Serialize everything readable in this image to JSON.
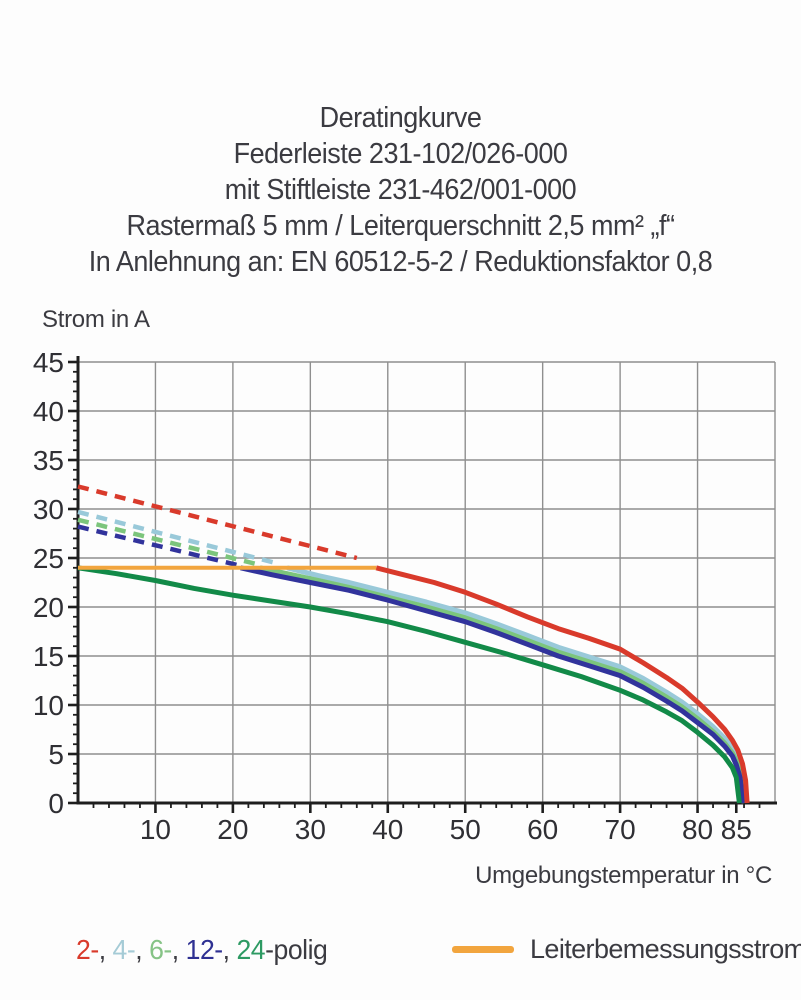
{
  "title": {
    "lines": [
      "Deratingkurve",
      "Federleiste 231-102/026-000",
      "mit Stiftleiste 231-462/001-000",
      "Rastermaß 5 mm / Leiterquerschnitt 2,5 mm² „f“",
      "In Anlehnung an: EN 60512-5-2 / Reduktionsfaktor 0,8"
    ]
  },
  "chart_data": {
    "type": "line",
    "title": "Deratingkurve",
    "xlabel": "Umgebungstemperatur in °C",
    "ylabel": "Strom in A",
    "xlim": [
      0,
      90
    ],
    "ylim": [
      0,
      45
    ],
    "x_major_ticks": [
      10,
      20,
      30,
      40,
      50,
      60,
      70,
      80,
      85
    ],
    "x_grid": [
      10,
      20,
      30,
      40,
      50,
      60,
      70,
      80,
      90
    ],
    "x_minor_step": 2,
    "y_major_ticks": [
      0,
      5,
      10,
      15,
      20,
      25,
      30,
      35,
      40,
      45
    ],
    "y_grid": [
      5,
      10,
      15,
      20,
      25,
      30,
      35,
      40,
      45
    ],
    "y_minor_step": 1,
    "grid_on": true,
    "grid_color": "#8f8f8f",
    "axis_color": "#1e1e1e",
    "tick_label_color": "#2f2f34",
    "series": [
      {
        "id": "2-polig-dashed",
        "name": "2-polig",
        "variant": "dashed",
        "color": "#d93a2b",
        "width": 4.5,
        "points": [
          [
            0,
            32.3
          ],
          [
            36,
            25.0
          ]
        ]
      },
      {
        "id": "4-polig-dashed",
        "name": "4-polig",
        "variant": "dashed",
        "color": "#99c9d9",
        "width": 4.5,
        "points": [
          [
            0,
            29.7
          ],
          [
            26,
            24.4
          ]
        ]
      },
      {
        "id": "6-polig-dashed",
        "name": "6-polig",
        "variant": "dashed",
        "color": "#7cc57c",
        "width": 4.5,
        "points": [
          [
            0,
            28.9
          ],
          [
            23.5,
            24.3
          ]
        ]
      },
      {
        "id": "12-polig-dashed",
        "name": "12-polig",
        "variant": "dashed",
        "color": "#31339c",
        "width": 4.5,
        "points": [
          [
            0,
            28.2
          ],
          [
            20.5,
            24.3
          ]
        ]
      },
      {
        "id": "4-polig",
        "name": "4-polig",
        "variant": "solid",
        "color": "#99c9d9",
        "width": 5,
        "points": [
          [
            27,
            24
          ],
          [
            31,
            23.2
          ],
          [
            35,
            22.5
          ],
          [
            40,
            21.5
          ],
          [
            45,
            20.5
          ],
          [
            50,
            19.4
          ],
          [
            54,
            18.3
          ],
          [
            58,
            17.1
          ],
          [
            62,
            15.9
          ],
          [
            66,
            14.9
          ],
          [
            70,
            13.9
          ],
          [
            73,
            12.7
          ],
          [
            76,
            11.3
          ],
          [
            78,
            10.3
          ],
          [
            80,
            9.1
          ],
          [
            82,
            7.8
          ],
          [
            83.5,
            6.6
          ],
          [
            84.5,
            5.6
          ],
          [
            85.2,
            4.6
          ],
          [
            85.7,
            3.2
          ],
          [
            86.1,
            0
          ]
        ]
      },
      {
        "id": "6-polig",
        "name": "6-polig",
        "variant": "solid",
        "color": "#7cc57c",
        "width": 5,
        "points": [
          [
            23.5,
            24
          ],
          [
            27,
            23.4
          ],
          [
            31,
            22.7
          ],
          [
            35,
            22.0
          ],
          [
            40,
            21.0
          ],
          [
            45,
            20.0
          ],
          [
            50,
            18.9
          ],
          [
            54,
            17.8
          ],
          [
            58,
            16.6
          ],
          [
            62,
            15.4
          ],
          [
            66,
            14.4
          ],
          [
            70,
            13.4
          ],
          [
            73,
            12.2
          ],
          [
            76,
            10.8
          ],
          [
            78,
            9.8
          ],
          [
            80,
            8.6
          ],
          [
            82,
            7.3
          ],
          [
            83.5,
            6.1
          ],
          [
            84.5,
            5.1
          ],
          [
            85.1,
            4.1
          ],
          [
            85.6,
            2.9
          ],
          [
            86.0,
            0
          ]
        ]
      },
      {
        "id": "12-polig",
        "name": "12-polig",
        "variant": "solid",
        "color": "#31339c",
        "width": 5,
        "points": [
          [
            21,
            24
          ],
          [
            25,
            23.3
          ],
          [
            30,
            22.5
          ],
          [
            35,
            21.7
          ],
          [
            40,
            20.7
          ],
          [
            45,
            19.6
          ],
          [
            50,
            18.5
          ],
          [
            54,
            17.4
          ],
          [
            58,
            16.2
          ],
          [
            62,
            15.0
          ],
          [
            66,
            14.0
          ],
          [
            70,
            13.0
          ],
          [
            73,
            11.8
          ],
          [
            76,
            10.4
          ],
          [
            78,
            9.4
          ],
          [
            80,
            8.2
          ],
          [
            82,
            7.0
          ],
          [
            83.5,
            5.8
          ],
          [
            84.5,
            4.8
          ],
          [
            85.0,
            3.9
          ],
          [
            85.5,
            2.6
          ],
          [
            85.9,
            0
          ]
        ]
      },
      {
        "id": "24-polig",
        "name": "24-polig",
        "variant": "solid",
        "color": "#128a48",
        "width": 5,
        "points": [
          [
            0,
            24
          ],
          [
            5,
            23.4
          ],
          [
            10,
            22.7
          ],
          [
            15,
            21.9
          ],
          [
            20,
            21.2
          ],
          [
            25,
            20.6
          ],
          [
            30,
            20.0
          ],
          [
            35,
            19.3
          ],
          [
            40,
            18.5
          ],
          [
            45,
            17.5
          ],
          [
            50,
            16.4
          ],
          [
            55,
            15.3
          ],
          [
            60,
            14.1
          ],
          [
            65,
            12.9
          ],
          [
            70,
            11.5
          ],
          [
            73,
            10.5
          ],
          [
            76,
            9.3
          ],
          [
            78,
            8.4
          ],
          [
            80,
            7.2
          ],
          [
            82,
            5.9
          ],
          [
            83.5,
            4.7
          ],
          [
            84.5,
            3.6
          ],
          [
            85.0,
            2.6
          ],
          [
            85.4,
            0
          ]
        ]
      },
      {
        "id": "2-polig",
        "name": "2-polig",
        "variant": "solid",
        "color": "#d93a2b",
        "width": 5,
        "points": [
          [
            38.5,
            24
          ],
          [
            42,
            23.3
          ],
          [
            46,
            22.5
          ],
          [
            50,
            21.5
          ],
          [
            54,
            20.3
          ],
          [
            58,
            19.0
          ],
          [
            62,
            17.8
          ],
          [
            66,
            16.8
          ],
          [
            70,
            15.7
          ],
          [
            73,
            14.3
          ],
          [
            76,
            12.8
          ],
          [
            78,
            11.7
          ],
          [
            80,
            10.3
          ],
          [
            82,
            8.8
          ],
          [
            83.5,
            7.5
          ],
          [
            84.5,
            6.4
          ],
          [
            85.2,
            5.4
          ],
          [
            85.8,
            4.0
          ],
          [
            86.2,
            2.3
          ],
          [
            86.4,
            0
          ]
        ]
      },
      {
        "id": "leiterbemessungsstrom",
        "name": "Leiterbemessungsstrom",
        "variant": "solid",
        "color": "#f2a53e",
        "width": 4,
        "points": [
          [
            0,
            24
          ],
          [
            38.5,
            24
          ]
        ]
      }
    ]
  },
  "legend": {
    "poles": {
      "segments": [
        {
          "text": "2-",
          "color": "#d93a2b"
        },
        {
          "text": ", ",
          "color": "#3b3b41"
        },
        {
          "text": "4-",
          "color": "#a5cbd6"
        },
        {
          "text": ", ",
          "color": "#3b3b41"
        },
        {
          "text": "6-",
          "color": "#86c386"
        },
        {
          "text": ", ",
          "color": "#3b3b41"
        },
        {
          "text": "12-",
          "color": "#2e3092"
        },
        {
          "text": ", ",
          "color": "#3b3b41"
        },
        {
          "text": "24",
          "color": "#2d9a63"
        },
        {
          "text": "-polig",
          "color": "#3b3b41"
        }
      ]
    },
    "rated": {
      "label": "Leiterbemessungsstrom",
      "swatch_color": "#f2a53e"
    }
  }
}
